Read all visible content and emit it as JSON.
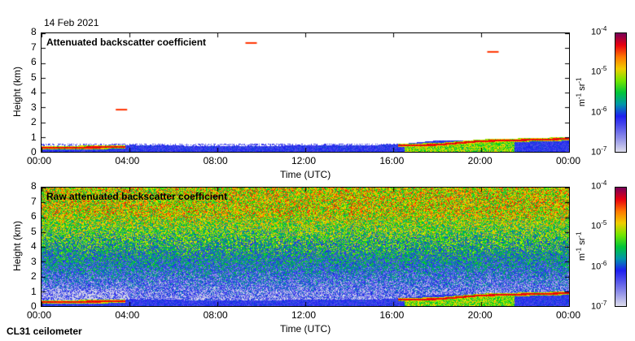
{
  "header": {
    "date": "14 Feb 2021"
  },
  "footer": {
    "instrument": "CL31 ceilometer"
  },
  "chart_data": [
    {
      "type": "heatmap",
      "title": "Attenuated backscatter coefficient",
      "xlabel": "Time (UTC)",
      "ylabel": "Height (km)",
      "xticks": [
        "00:00",
        "04:00",
        "08:00",
        "12:00",
        "16:00",
        "20:00",
        "00:00"
      ],
      "yticks": [
        "0",
        "1",
        "2",
        "3",
        "4",
        "5",
        "6",
        "7",
        "8"
      ],
      "xlim_hours": [
        0,
        24
      ],
      "ylim_km": [
        0,
        8
      ],
      "colorbar": {
        "label": "m-1 sr-1",
        "ticks": [
          "10-7",
          "10-6",
          "10-5",
          "10-4"
        ],
        "range": [
          1e-07,
          0.0001
        ],
        "scale": "log"
      },
      "aerosol_layer_top_km": [
        [
          0,
          0.4
        ],
        [
          3.8,
          0.45
        ],
        [
          4,
          0.5
        ],
        [
          8,
          0.4
        ],
        [
          12,
          0.45
        ],
        [
          16,
          0.5
        ],
        [
          18,
          0.8
        ],
        [
          20,
          0.8
        ],
        [
          22,
          0.8
        ],
        [
          24,
          1.0
        ]
      ],
      "strong_layer_km": [
        [
          0.5,
          0.3
        ],
        [
          3.7,
          0.35
        ],
        [
          16,
          0.45
        ],
        [
          18,
          0.5
        ],
        [
          20,
          0.75
        ],
        [
          24,
          0.9
        ]
      ],
      "isolated_features": [
        [
          3.6,
          2.9
        ],
        [
          20.5,
          6.8
        ],
        [
          9.5,
          7.4
        ]
      ]
    },
    {
      "type": "heatmap",
      "title": "Raw attenuated backscatter coefficient",
      "xlabel": "Time (UTC)",
      "ylabel": "Height (km)",
      "xticks": [
        "00:00",
        "04:00",
        "08:00",
        "12:00",
        "16:00",
        "20:00",
        "00:00"
      ],
      "yticks": [
        "0",
        "1",
        "2",
        "3",
        "4",
        "5",
        "6",
        "7",
        "8"
      ],
      "xlim_hours": [
        0,
        24
      ],
      "ylim_km": [
        0,
        8
      ],
      "colorbar": {
        "label": "m-1 sr-1",
        "ticks": [
          "10-7",
          "10-6",
          "10-5",
          "10-4"
        ],
        "range": [
          1e-07,
          0.0001
        ],
        "scale": "log"
      },
      "noise_level": "high above 1.5 km, increasing with height"
    }
  ]
}
